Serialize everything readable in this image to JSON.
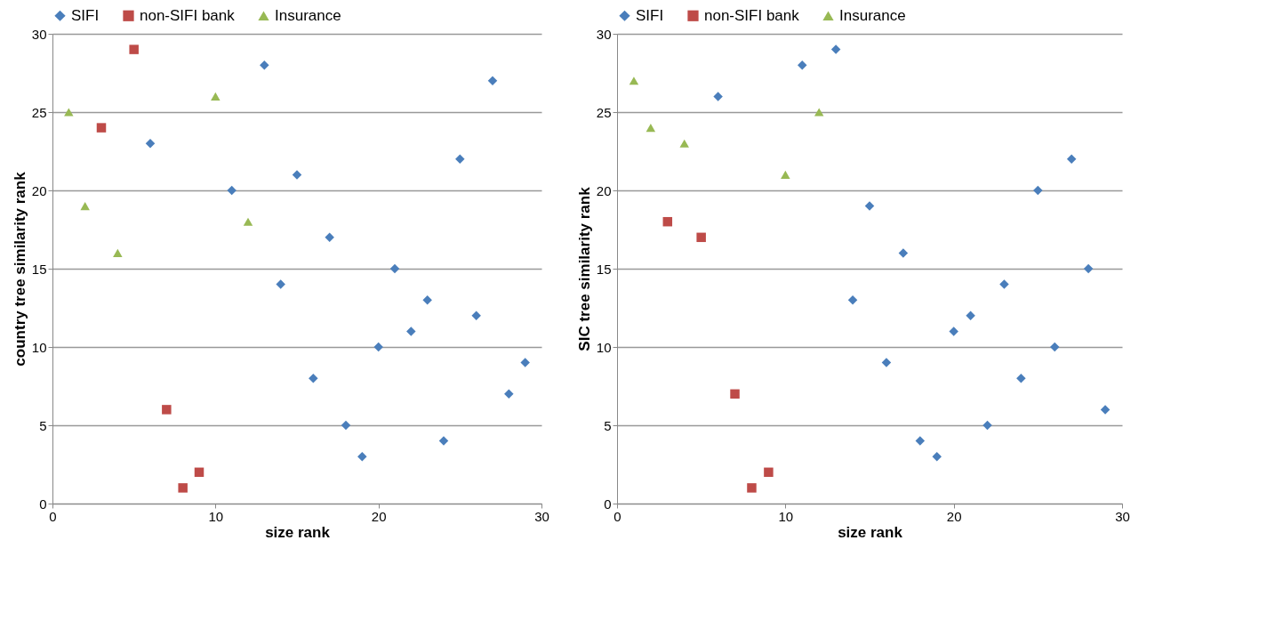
{
  "chart_data": [
    {
      "type": "scatter",
      "xlabel": "size rank",
      "ylabel": "country tree similarity rank",
      "xlim": [
        0,
        30
      ],
      "ylim": [
        0,
        30
      ],
      "xticks": [
        0,
        10,
        20,
        30
      ],
      "yticks": [
        0,
        5,
        10,
        15,
        20,
        25,
        30
      ],
      "grid": "y",
      "legend": "top",
      "series": [
        {
          "name": "SIFI",
          "color": "#4a7ebb",
          "marker": "diamond",
          "x": [
            6,
            11,
            13,
            14,
            15,
            16,
            17,
            18,
            19,
            20,
            21,
            22,
            23,
            24,
            25,
            26,
            27,
            28,
            29
          ],
          "values": [
            23,
            20,
            28,
            14,
            21,
            8,
            17,
            5,
            3,
            10,
            15,
            11,
            13,
            4,
            22,
            12,
            27,
            7,
            9
          ]
        },
        {
          "name": "non-SIFI bank",
          "color": "#be4b48",
          "marker": "square",
          "x": [
            3,
            5,
            7,
            8,
            9
          ],
          "values": [
            24,
            29,
            6,
            1,
            2
          ]
        },
        {
          "name": "Insurance",
          "color": "#98b954",
          "marker": "triangle",
          "x": [
            1,
            2,
            4,
            10,
            12
          ],
          "values": [
            25,
            19,
            16,
            26,
            18
          ]
        }
      ]
    },
    {
      "type": "scatter",
      "xlabel": "size rank",
      "ylabel": "SIC tree similarity rank",
      "xlim": [
        0,
        30
      ],
      "ylim": [
        0,
        30
      ],
      "xticks": [
        0,
        10,
        20,
        30
      ],
      "yticks": [
        0,
        5,
        10,
        15,
        20,
        25,
        30
      ],
      "grid": "y",
      "legend": "top",
      "series": [
        {
          "name": "SIFI",
          "color": "#4a7ebb",
          "marker": "diamond",
          "x": [
            6,
            11,
            13,
            14,
            15,
            16,
            17,
            18,
            19,
            20,
            21,
            22,
            23,
            24,
            25,
            26,
            27,
            28,
            29
          ],
          "values": [
            26,
            28,
            29,
            13,
            19,
            9,
            16,
            4,
            3,
            11,
            12,
            5,
            14,
            8,
            20,
            10,
            22,
            15,
            6
          ]
        },
        {
          "name": "non-SIFI bank",
          "color": "#be4b48",
          "marker": "square",
          "x": [
            3,
            5,
            7,
            8,
            9
          ],
          "values": [
            18,
            17,
            7,
            1,
            2
          ]
        },
        {
          "name": "Insurance",
          "color": "#98b954",
          "marker": "triangle",
          "x": [
            1,
            2,
            4,
            10,
            12
          ],
          "values": [
            27,
            24,
            23,
            21,
            25
          ]
        }
      ]
    }
  ]
}
